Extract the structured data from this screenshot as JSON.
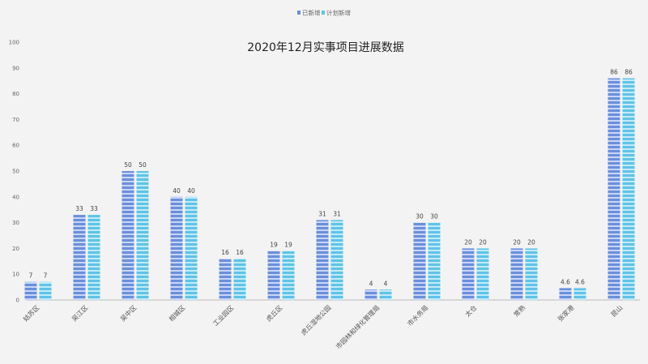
{
  "chart_data": {
    "type": "bar",
    "title": "2020年12月实事项目进展数据",
    "xlabel": "",
    "ylabel": "",
    "ylim": [
      0,
      100
    ],
    "yticks": [
      0,
      10,
      20,
      30,
      40,
      50,
      60,
      70,
      80,
      90,
      100
    ],
    "grid": false,
    "legend_position": "top",
    "categories": [
      "姑苏区",
      "吴江区",
      "吴中区",
      "相城区",
      "工业园区",
      "虎丘区",
      "虎丘湿地公园",
      "市园林和绿化管理局",
      "市水务局",
      "太仓",
      "常熟",
      "张家港",
      "昆山"
    ],
    "series": [
      {
        "name": "已新增",
        "values": [
          7,
          33,
          50,
          40,
          16,
          19,
          31,
          4,
          30,
          20,
          20,
          4.6,
          86
        ],
        "color": "#6b8fde"
      },
      {
        "name": "计划新增",
        "values": [
          7,
          33,
          50,
          40,
          16,
          19,
          31,
          4,
          30,
          20,
          20,
          4.6,
          86
        ],
        "color": "#5fc3e8"
      }
    ]
  }
}
